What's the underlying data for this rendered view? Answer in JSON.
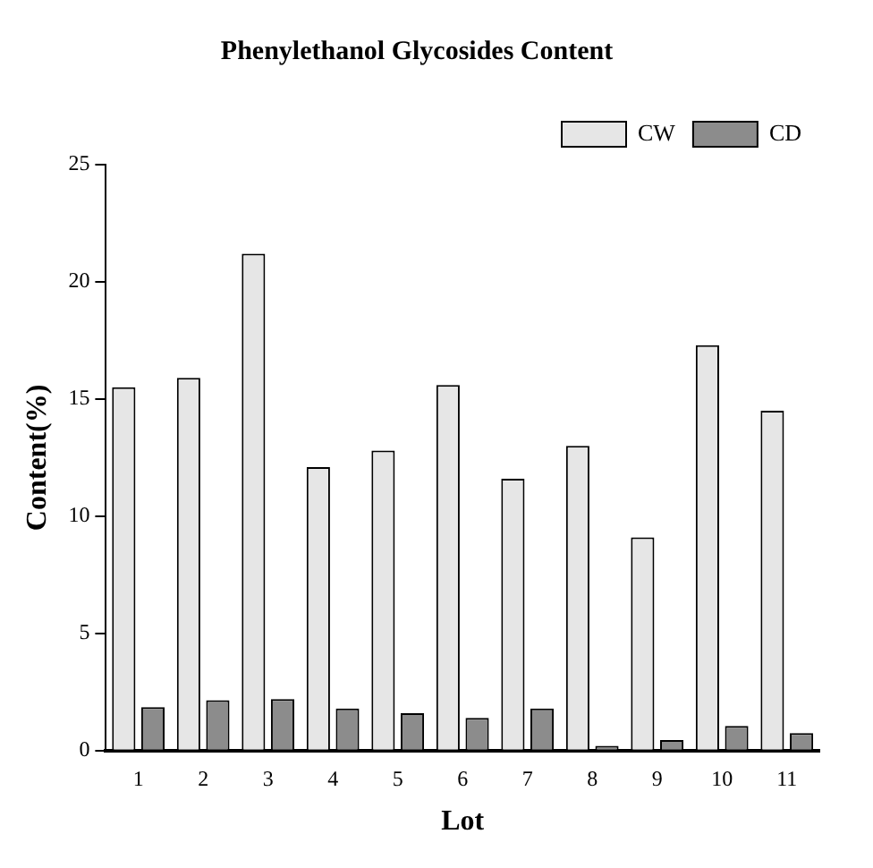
{
  "chart_data": {
    "type": "bar",
    "title": "Phenylethanol Glycosides Content",
    "xlabel": "Lot",
    "ylabel": "Content(%)",
    "categories": [
      "1",
      "2",
      "3",
      "4",
      "5",
      "6",
      "7",
      "8",
      "9",
      "10",
      "11"
    ],
    "series": [
      {
        "name": "CW",
        "color": "#e6e6e6",
        "values": [
          15.5,
          15.9,
          21.2,
          12.1,
          12.8,
          15.6,
          11.6,
          13.0,
          9.1,
          17.3,
          14.5
        ]
      },
      {
        "name": "CD",
        "color": "#8c8c8c",
        "values": [
          1.85,
          2.15,
          2.2,
          1.8,
          1.6,
          1.4,
          1.8,
          0.2,
          0.45,
          1.05,
          0.75
        ]
      }
    ],
    "ylim": [
      0,
      25
    ],
    "yticks": [
      0,
      5,
      10,
      15,
      20,
      25
    ],
    "grid": false,
    "legend": "top right"
  }
}
